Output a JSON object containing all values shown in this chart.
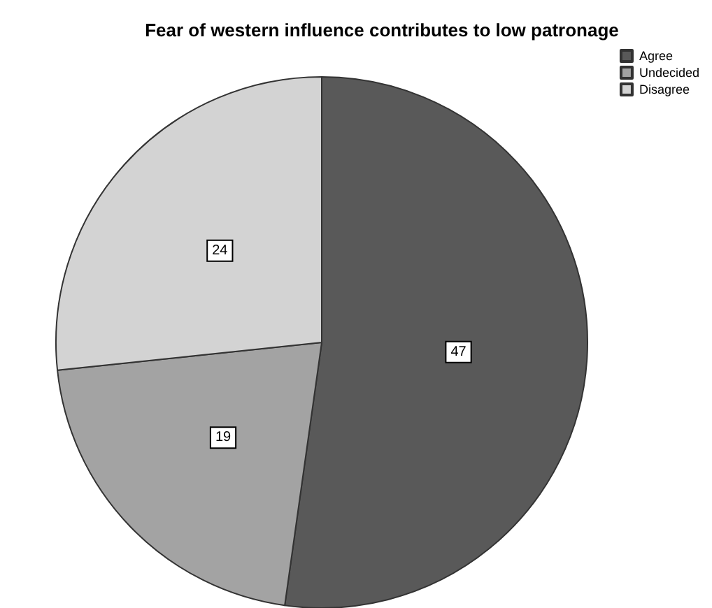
{
  "chart_data": {
    "type": "pie",
    "title": "Fear of western influence contributes to low patronage",
    "categories": [
      "Agree",
      "Undecided",
      "Disagree"
    ],
    "values": [
      47,
      19,
      24
    ],
    "colors": [
      "#595959",
      "#a3a3a3",
      "#d3d3d3"
    ],
    "data_labels": true,
    "legend": "top right"
  }
}
